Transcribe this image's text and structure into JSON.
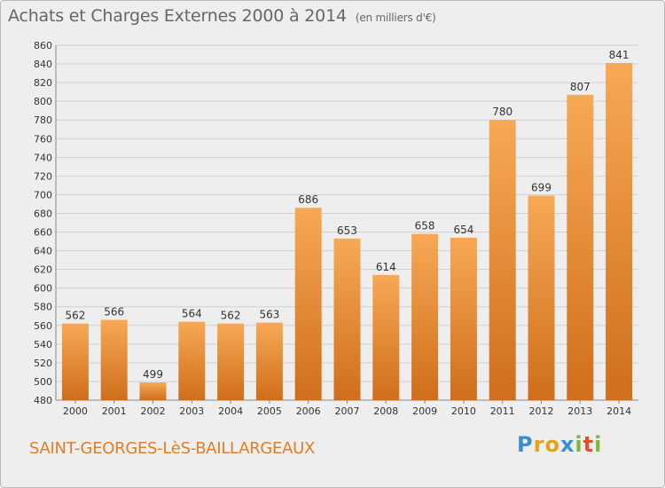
{
  "header": {
    "title": "Achats et Charges Externes 2000 à 2014",
    "unit": "(en milliers d'€)"
  },
  "footer": {
    "city": "SAINT-GEORGES-LèS-BAILLARGEAUX",
    "logo": {
      "text": "Proxiti",
      "letters": [
        "P",
        "r",
        "o",
        "x",
        "i",
        "t",
        "i"
      ],
      "colors": [
        "#3a8fd1",
        "#e6a21a",
        "#e6a21a",
        "#3a8fd1",
        "#7cb83a",
        "#e0502a",
        "#7cb83a"
      ]
    }
  },
  "colors": {
    "bar_light": "#f7a955",
    "bar_dark": "#cf6e1b",
    "accent": "#e07d25"
  },
  "chart_data": {
    "type": "bar",
    "categories": [
      "2000",
      "2001",
      "2002",
      "2003",
      "2004",
      "2005",
      "2006",
      "2007",
      "2008",
      "2009",
      "2010",
      "2011",
      "2012",
      "2013",
      "2014"
    ],
    "values": [
      562,
      566,
      499,
      564,
      562,
      563,
      686,
      653,
      614,
      658,
      654,
      780,
      699,
      807,
      841
    ],
    "title": "Achats et Charges Externes 2000 à 2014",
    "ylim": [
      480,
      860
    ],
    "yticks": [
      480,
      500,
      520,
      540,
      560,
      580,
      600,
      620,
      640,
      660,
      680,
      700,
      720,
      740,
      760,
      780,
      800,
      820,
      840,
      860
    ],
    "grid": true
  }
}
